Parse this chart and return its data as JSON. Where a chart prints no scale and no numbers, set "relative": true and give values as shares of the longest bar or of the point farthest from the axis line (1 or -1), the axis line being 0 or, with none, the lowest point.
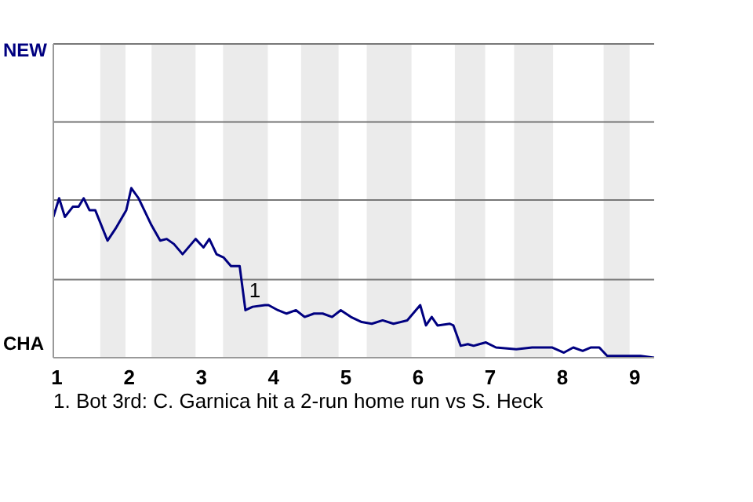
{
  "chart_data": {
    "type": "line",
    "relative": true,
    "x": [
      0.95,
      1.03,
      1.11,
      1.22,
      1.3,
      1.37,
      1.45,
      1.53,
      1.7,
      1.81,
      1.96,
      2.03,
      2.13,
      2.31,
      2.43,
      2.52,
      2.62,
      2.74,
      2.92,
      3.03,
      3.11,
      3.21,
      3.31,
      3.41,
      3.53,
      3.61,
      3.71,
      3.88,
      3.93,
      4.06,
      4.18,
      4.31,
      4.43,
      4.56,
      4.68,
      4.81,
      4.93,
      5.07,
      5.22,
      5.36,
      5.51,
      5.66,
      5.85,
      6.03,
      6.11,
      6.19,
      6.27,
      6.44,
      6.49,
      6.59,
      6.69,
      6.77,
      6.85,
      6.94,
      7.08,
      7.36,
      7.58,
      7.86,
      8.02,
      8.15,
      8.28,
      8.39,
      8.51,
      8.62,
      8.92,
      9.08,
      9.27
    ],
    "series": [
      {
        "color": "#000080",
        "values": [
          0.83,
          0.94,
          0.83,
          0.89,
          0.89,
          0.94,
          0.87,
          0.87,
          0.69,
          0.76,
          0.87,
          1,
          0.94,
          0.78,
          0.69,
          0.7,
          0.67,
          0.61,
          0.7,
          0.65,
          0.7,
          0.61,
          0.59,
          0.54,
          0.54,
          0.28,
          0.3,
          0.31,
          0.31,
          0.28,
          0.26,
          0.28,
          0.24,
          0.26,
          0.26,
          0.24,
          0.28,
          0.24,
          0.21,
          0.2,
          0.22,
          0.2,
          0.22,
          0.31,
          0.19,
          0.24,
          0.19,
          0.2,
          0.19,
          0.07,
          0.08,
          0.07,
          0.08,
          0.09,
          0.06,
          0.05,
          0.06,
          0.06,
          0.03,
          0.06,
          0.04,
          0.06,
          0.06,
          0.01,
          0.01,
          0.01,
          0
        ]
      }
    ],
    "xlim": [
      0.95,
      9.27
    ],
    "xticks": [
      1,
      2,
      3,
      4,
      5,
      6,
      7,
      8,
      9
    ],
    "ref_lines": [
      {
        "axis": "y",
        "value": 0.46,
        "color": "#777777"
      },
      {
        "axis": "y",
        "value": 0.93,
        "color": "#777777"
      },
      {
        "axis": "y",
        "value": 1.39,
        "color": "#777777"
      },
      {
        "axis": "y",
        "value": 1.85,
        "color": "#777777"
      }
    ],
    "bands": [
      {
        "axis": "x",
        "from": 1.6,
        "to": 1.95,
        "color": "#ebebeb"
      },
      {
        "axis": "x",
        "from": 2.31,
        "to": 2.92,
        "color": "#ebebeb"
      },
      {
        "axis": "x",
        "from": 3.3,
        "to": 3.92,
        "color": "#ebebeb"
      },
      {
        "axis": "x",
        "from": 4.38,
        "to": 4.9,
        "color": "#ebebeb"
      },
      {
        "axis": "x",
        "from": 5.29,
        "to": 5.91,
        "color": "#ebebeb"
      },
      {
        "axis": "x",
        "from": 6.51,
        "to": 6.93,
        "color": "#ebebeb"
      },
      {
        "axis": "x",
        "from": 7.33,
        "to": 7.87,
        "color": "#ebebeb"
      },
      {
        "axis": "x",
        "from": 8.57,
        "to": 8.93,
        "color": "#ebebeb"
      }
    ],
    "annotations": [
      "NEW",
      "CHA",
      {
        "text": "1",
        "x": 3.62,
        "y": 0.4
      },
      "1. Bot 3rd: C. Garnica hit a 2-run home run vs S. Heck"
    ]
  }
}
